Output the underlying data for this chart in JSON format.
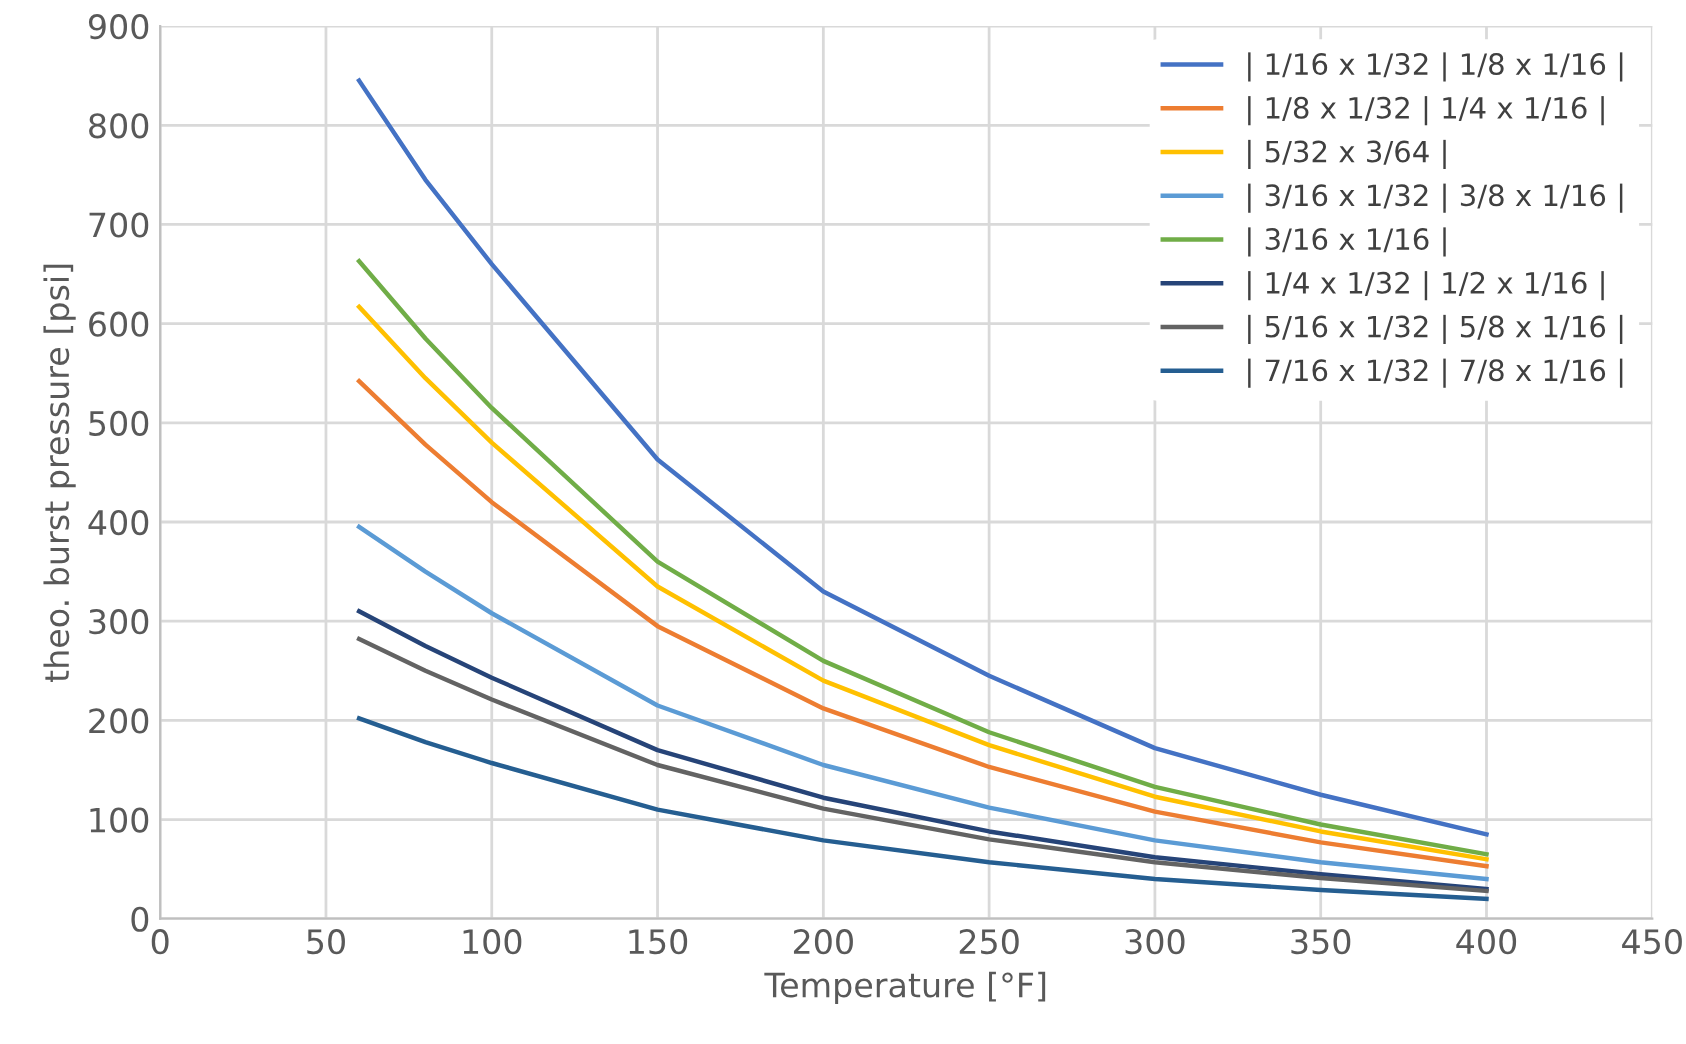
{
  "chart_data": {
    "type": "line",
    "xlabel": "Temperature [°F]",
    "ylabel": "theo. burst pressure [psi]",
    "x": [
      60,
      80,
      100,
      150,
      200,
      250,
      300,
      350,
      400
    ],
    "xlim": [
      0,
      450
    ],
    "xticks": [
      0,
      50,
      100,
      150,
      200,
      250,
      300,
      350,
      400,
      450
    ],
    "ylim": [
      0,
      900
    ],
    "yticks": [
      0,
      100,
      200,
      300,
      400,
      500,
      600,
      700,
      800,
      900
    ],
    "grid": true,
    "legend": "top right",
    "marker": "none",
    "line_style": "solid",
    "series": [
      {
        "name": "| 1/16 x 1/32 | 1/8 x 1/16 |",
        "color": "#4472c4",
        "values": [
          845,
          745,
          660,
          463,
          330,
          245,
          172,
          125,
          85
        ]
      },
      {
        "name": "| 1/8 x 1/32 | 1/4 x 1/16 |",
        "color": "#ed7d31",
        "values": [
          542,
          478,
          420,
          295,
          212,
          153,
          108,
          77,
          53
        ]
      },
      {
        "name": "| 5/32 x 3/64 |",
        "color": "#ffc000",
        "values": [
          617,
          545,
          480,
          335,
          240,
          175,
          123,
          88,
          60
        ]
      },
      {
        "name": "| 3/16 x 1/32 | 3/8 x 1/16 |",
        "color": "#5b9bd5",
        "values": [
          395,
          350,
          308,
          215,
          155,
          112,
          79,
          57,
          40
        ]
      },
      {
        "name": "| 3/16 x 1/16 |",
        "color": "#70ad47",
        "values": [
          663,
          585,
          515,
          360,
          260,
          188,
          133,
          95,
          65
        ]
      },
      {
        "name": "| 1/4 x 1/32 | 1/2 x 1/16 |",
        "color": "#264478",
        "values": [
          310,
          275,
          243,
          170,
          122,
          88,
          62,
          45,
          30
        ]
      },
      {
        "name": "| 5/16 x 1/32 | 5/8 x 1/16 |",
        "color": "#636363",
        "values": [
          282,
          250,
          221,
          155,
          111,
          80,
          57,
          41,
          28
        ]
      },
      {
        "name": "| 7/16 x 1/32 | 7/8 x 1/16 |",
        "color": "#255e91",
        "values": [
          202,
          178,
          157,
          110,
          79,
          57,
          40,
          29,
          20
        ]
      }
    ]
  }
}
